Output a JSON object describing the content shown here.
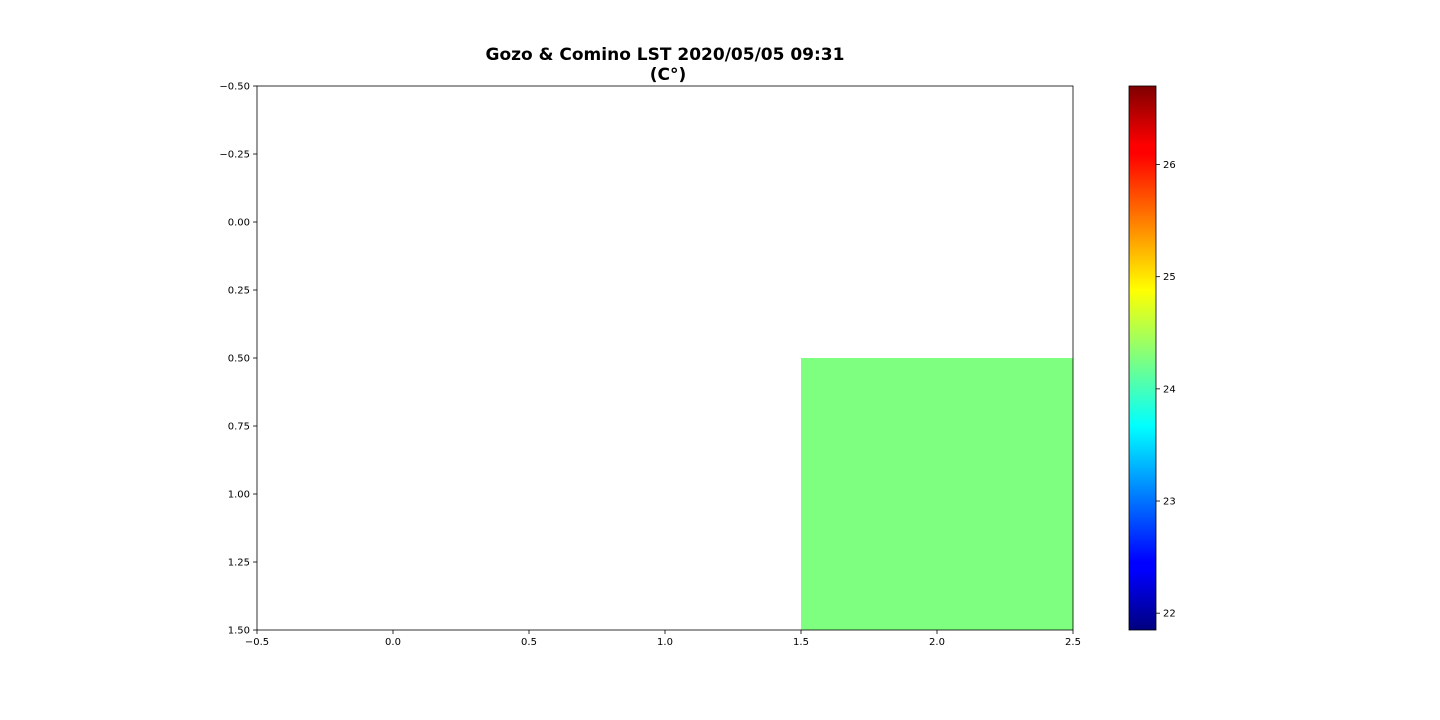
{
  "chart_data": {
    "type": "heatmap",
    "title": "Gozo & Comino LST 2020/05/05 09:31",
    "subtitle": "(C°)",
    "xlabel": "",
    "ylabel": "",
    "xlim": [
      -0.5,
      2.5
    ],
    "ylim": [
      1.5,
      -0.5
    ],
    "y_inverted": true,
    "grid": false,
    "x_ticks": [
      -0.5,
      0.0,
      0.5,
      1.0,
      1.5,
      2.0,
      2.5
    ],
    "x_tick_labels": [
      "−0.5",
      "0.0",
      "0.5",
      "1.0",
      "1.5",
      "2.0",
      "2.5"
    ],
    "y_ticks": [
      -0.5,
      -0.25,
      0.0,
      0.25,
      0.5,
      0.75,
      1.0,
      1.25,
      1.5
    ],
    "y_tick_labels": [
      "−0.50",
      "−0.25",
      "0.00",
      "0.25",
      "0.50",
      "0.75",
      "1.00",
      "1.25",
      "1.50"
    ],
    "colormap": "jet",
    "grid_values": [
      [
        null,
        null,
        null
      ],
      [
        null,
        null,
        24.5
      ]
    ],
    "cell_color": "#7fff7f",
    "colorbar": {
      "vmin": 21.85,
      "vmax": 26.7,
      "ticks": [
        22,
        23,
        24,
        25,
        26
      ],
      "tick_labels": [
        "22",
        "23",
        "24",
        "25",
        "26"
      ],
      "placement": "right"
    }
  }
}
